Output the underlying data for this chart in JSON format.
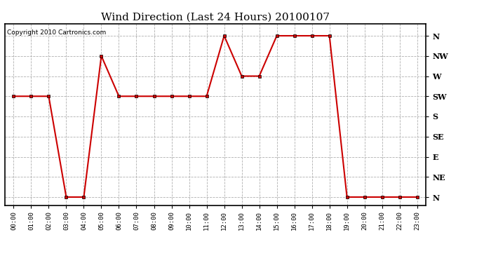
{
  "title": "Wind Direction (Last 24 Hours) 20100107",
  "copyright": "Copyright 2010 Cartronics.com",
  "hours": [
    "00:00",
    "01:00",
    "02:00",
    "03:00",
    "04:00",
    "05:00",
    "06:00",
    "07:00",
    "08:00",
    "09:00",
    "10:00",
    "11:00",
    "12:00",
    "13:00",
    "14:00",
    "15:00",
    "16:00",
    "17:00",
    "18:00",
    "19:00",
    "20:00",
    "21:00",
    "22:00",
    "23:00"
  ],
  "values": [
    5,
    5,
    5,
    0,
    0,
    7,
    5,
    5,
    5,
    5,
    5,
    5,
    8,
    6,
    6,
    8,
    8,
    8,
    8,
    0,
    0,
    0,
    0,
    0
  ],
  "ytick_labels": [
    "N",
    "NE",
    "E",
    "SE",
    "S",
    "SW",
    "W",
    "NW",
    "N"
  ],
  "ytick_values": [
    0,
    1,
    2,
    3,
    4,
    5,
    6,
    7,
    8
  ],
  "line_color": "#cc0000",
  "marker": "s",
  "marker_size": 2.5,
  "line_width": 1.5,
  "bg_color": "#ffffff",
  "grid_color": "#b0b0b0",
  "title_fontsize": 11,
  "copyright_fontsize": 6.5,
  "ytick_fontsize": 8,
  "xtick_fontsize": 6.5,
  "ylim": [
    -0.4,
    8.6
  ],
  "xlim": [
    -0.5,
    23.5
  ]
}
